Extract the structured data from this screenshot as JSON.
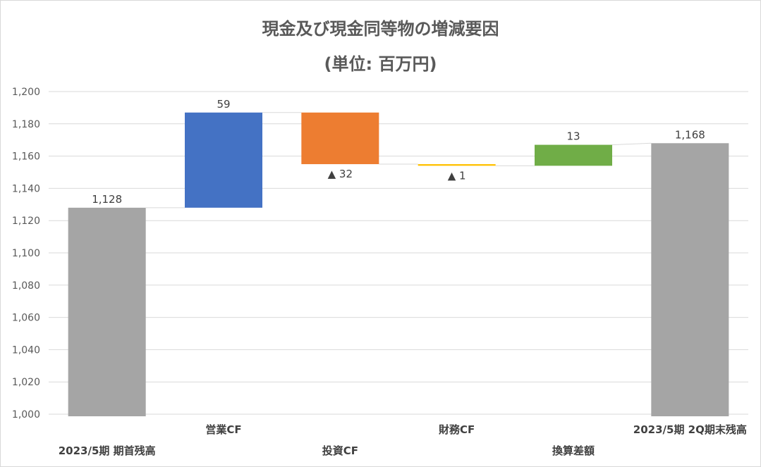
{
  "chart_data": {
    "type": "bar",
    "subtype": "waterfall",
    "title": "現金及び現金同等物の増減要因",
    "subtitle": "(単位: 百万円)",
    "ylim": [
      1000,
      1200
    ],
    "yticks": [
      1000,
      1020,
      1040,
      1060,
      1080,
      1100,
      1120,
      1140,
      1160,
      1180,
      1200
    ],
    "ytick_labels": [
      "1,000",
      "1,020",
      "1,040",
      "1,060",
      "1,080",
      "1,100",
      "1,120",
      "1,140",
      "1,160",
      "1,180",
      "1,200"
    ],
    "grid": true,
    "legend": "none",
    "categories": [
      "2023/5期 期首残高",
      "営業CF",
      "投資CF",
      "財務CF",
      "換算差額",
      "2023/5期 2Q期末残高"
    ],
    "bars": [
      {
        "category": "2023/5期 期首残高",
        "kind": "total",
        "start": 1000,
        "end": 1128,
        "label": "1,128",
        "color": "#a5a5a5"
      },
      {
        "category": "営業CF",
        "kind": "increase",
        "start": 1128,
        "end": 1187,
        "label": "59",
        "color": "#4472c4"
      },
      {
        "category": "投資CF",
        "kind": "decrease",
        "start": 1187,
        "end": 1155,
        "label": "▲ 32",
        "color": "#ed7d31"
      },
      {
        "category": "財務CF",
        "kind": "decrease",
        "start": 1155,
        "end": 1154,
        "label": "▲ 1",
        "color": "#ffc000"
      },
      {
        "category": "換算差額",
        "kind": "increase",
        "start": 1154,
        "end": 1167,
        "label": "13",
        "color": "#70ad47"
      },
      {
        "category": "2023/5期 2Q期末残高",
        "kind": "total",
        "start": 1000,
        "end": 1168,
        "label": "1,168",
        "color": "#a5a5a5"
      }
    ]
  },
  "colors": {
    "grid": "#d9d9d9",
    "connector": "#d9d9d9",
    "axis_text": "#595959",
    "title_text": "#595959"
  }
}
